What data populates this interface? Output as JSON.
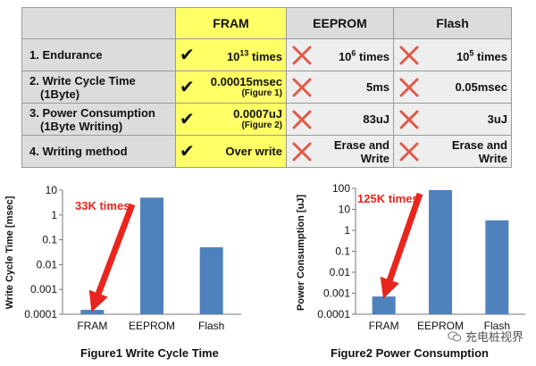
{
  "table": {
    "headers": [
      "",
      "FRAM",
      "EEPROM",
      "Flash"
    ],
    "rows": [
      {
        "label": "1. Endurance",
        "label2": "",
        "fram": {
          "pre": "10",
          "sup": "13",
          "post": " times",
          "sub": ""
        },
        "eeprom": {
          "pre": "10",
          "sup": "6",
          "post": " times"
        },
        "flash": {
          "pre": "10",
          "sup": "5",
          "post": " times"
        }
      },
      {
        "label": "2. Write Cycle Time",
        "label2": "(1Byte)",
        "fram": {
          "pre": "0.00015msec",
          "sup": "",
          "post": "",
          "sub": "(Figure 1)"
        },
        "eeprom": {
          "pre": "5ms",
          "sup": "",
          "post": ""
        },
        "flash": {
          "pre": "0.05msec",
          "sup": "",
          "post": ""
        }
      },
      {
        "label": "3. Power Consumption",
        "label2": "(1Byte Writing)",
        "fram": {
          "pre": "0.0007uJ",
          "sup": "",
          "post": "",
          "sub": "(Figure 2)"
        },
        "eeprom": {
          "pre": "83uJ",
          "sup": "",
          "post": ""
        },
        "flash": {
          "pre": "3uJ",
          "sup": "",
          "post": ""
        }
      },
      {
        "label": "4. Writing method",
        "label2": "",
        "fram": {
          "pre": "Over write",
          "sup": "",
          "post": "",
          "sub": ""
        },
        "eeprom": {
          "pre": "Erase and",
          "sup": "",
          "post": "",
          "line2": "Write"
        },
        "flash": {
          "pre": "Erase and",
          "sup": "",
          "post": "",
          "line2": "Write"
        }
      }
    ],
    "check_symbol": "✔"
  },
  "colors": {
    "bar": "#4f81bd",
    "arrow": "#e8251e",
    "cross": "#e05a4a",
    "fram_col": "#ffff66",
    "label_col": "#dcdcdc"
  },
  "watermark": {
    "text": "充电桩视界",
    "icon": "wechat-icon"
  },
  "chart_data": [
    {
      "type": "bar",
      "scale": "log",
      "categories": [
        "FRAM",
        "EEPROM",
        "Flash"
      ],
      "values": [
        0.00015,
        5,
        0.05
      ],
      "ylim": [
        0.0001,
        10
      ],
      "yticks": [
        "10",
        "1",
        "0.1",
        "0.01",
        "0.001",
        "0.0001"
      ],
      "ylabel": "Write Cycle Time [msec]",
      "xlabel": "",
      "title": "Figure1 Write Cycle Time",
      "annotation": "33K times",
      "grid": false
    },
    {
      "type": "bar",
      "scale": "log",
      "categories": [
        "FRAM",
        "EEPROM",
        "Flash"
      ],
      "values": [
        0.0007,
        83,
        3
      ],
      "ylim": [
        0.0001,
        100
      ],
      "yticks": [
        "100",
        "10",
        "1",
        "0.1",
        "0.01",
        "0.001",
        "0.0001"
      ],
      "ylabel": "Power Consumption [uJ]",
      "xlabel": "",
      "title": "Figure2 Power Consumption",
      "annotation": "125K times",
      "grid": false
    }
  ]
}
